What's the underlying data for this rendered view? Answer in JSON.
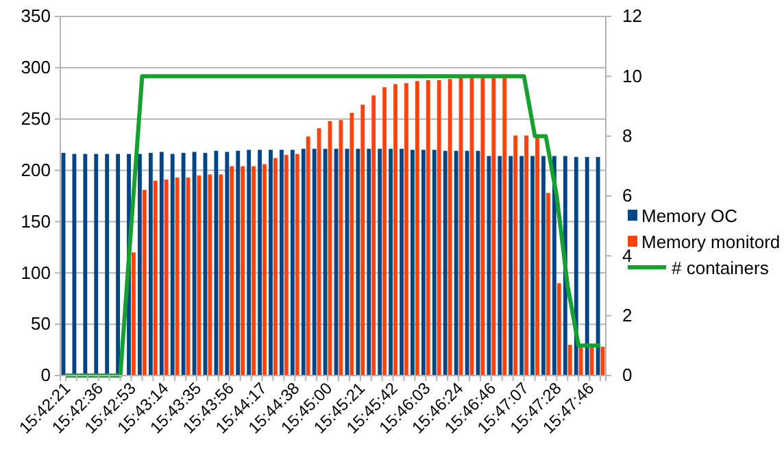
{
  "chart_data": {
    "type": "bar",
    "categories": [
      "15:42:21",
      null,
      null,
      "15:42:36",
      null,
      null,
      "15:42:53",
      null,
      null,
      "15:43:14",
      null,
      null,
      "15:43:35",
      null,
      null,
      "15:43:56",
      null,
      null,
      "15:44:17",
      null,
      null,
      "15:44:38",
      null,
      null,
      "15:45:00",
      null,
      null,
      "15:45:21",
      null,
      null,
      "15:45:42",
      null,
      null,
      "15:46:03",
      null,
      null,
      "15:46:24",
      null,
      null,
      "15:46:46",
      null,
      null,
      "15:47:07",
      null,
      null,
      "15:47:28",
      null,
      null,
      "15:47:46",
      null
    ],
    "series": [
      {
        "name": "Memory OC",
        "color": "#004586",
        "values": [
          217,
          216,
          216,
          216,
          216,
          216,
          216,
          216,
          217,
          218,
          216,
          217,
          218,
          217,
          219,
          218,
          219,
          220,
          220,
          220,
          220,
          220,
          221,
          221,
          221,
          221,
          221,
          221,
          221,
          221,
          221,
          221,
          220,
          220,
          220,
          219,
          219,
          219,
          219,
          214,
          214,
          214,
          214,
          214,
          214,
          214,
          214,
          213,
          213,
          213
        ]
      },
      {
        "name": "Memory monitord",
        "color": "#ff420e",
        "values": [
          0,
          0,
          0,
          0,
          0,
          0,
          120,
          181,
          190,
          191,
          193,
          193,
          195,
          196,
          196,
          204,
          204,
          204,
          206,
          212,
          215,
          216,
          233,
          241,
          248,
          249,
          256,
          264,
          273,
          281,
          284,
          285,
          287,
          288,
          288,
          289,
          290,
          290,
          290,
          290,
          290,
          234,
          234,
          234,
          178,
          90,
          30,
          30,
          28,
          28
        ]
      },
      {
        "name": "# containers",
        "type": "line",
        "axis": "y2",
        "color": "#16a030",
        "values": [
          0,
          0,
          0,
          0,
          0,
          0,
          5,
          10,
          10,
          10,
          10,
          10,
          10,
          10,
          10,
          10,
          10,
          10,
          10,
          10,
          10,
          10,
          10,
          10,
          10,
          10,
          10,
          10,
          10,
          10,
          10,
          10,
          10,
          10,
          10,
          10,
          10,
          10,
          10,
          10,
          10,
          10,
          10,
          8,
          8,
          6,
          3,
          1,
          1,
          1
        ]
      }
    ],
    "ylim": [
      0,
      350
    ],
    "yticks": [
      0,
      50,
      100,
      150,
      200,
      250,
      300,
      350
    ],
    "y2lim": [
      0,
      12
    ],
    "y2ticks": [
      0,
      2,
      4,
      6,
      8,
      10,
      12
    ],
    "grid": "y",
    "legend": "right"
  }
}
